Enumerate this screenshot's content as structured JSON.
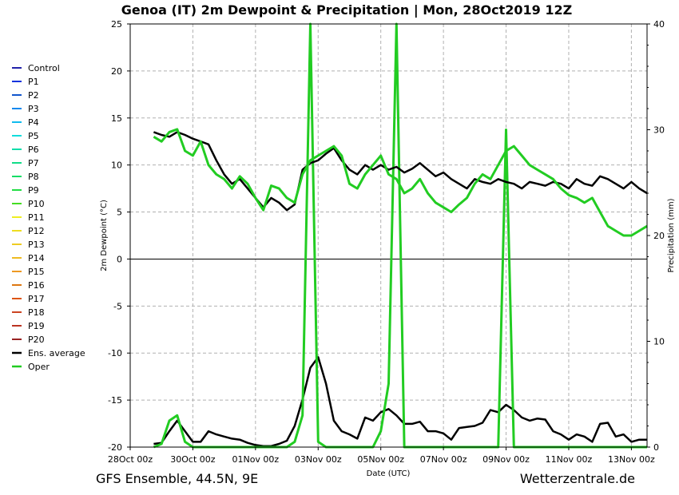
{
  "chart_data": {
    "type": "line",
    "title": "Genoa  (IT)  2m Dewpoint & Precipitation | Mon, 28Oct2019 12Z",
    "ylabel": "2m Dewpoint (°C)",
    "y2label": "Precipitation (mm)",
    "xlabel": "Date (UTC)",
    "ylim": [
      -20,
      25
    ],
    "y2lim": [
      0,
      40
    ],
    "xlim": [
      0,
      16.5
    ],
    "x_units": "days since 28Oct 00z",
    "yticks": [
      "25",
      "20",
      "15",
      "10",
      "5",
      "0",
      "-5",
      "-10",
      "-15",
      "-20"
    ],
    "y2ticks": [
      "40",
      "30",
      "20",
      "10",
      "0"
    ],
    "xticks": [
      "28Oct 00z",
      "30Oct 00z",
      "01Nov 00z",
      "03Nov 00z",
      "05Nov 00z",
      "07Nov 00z",
      "09Nov 00z",
      "11Nov 00z",
      "13Nov 00z"
    ],
    "grid": true,
    "legend_position": "left",
    "legend": [
      {
        "name": "Control",
        "color": "#2222aa"
      },
      {
        "name": "P1",
        "color": "#1133dd"
      },
      {
        "name": "P2",
        "color": "#1155cc"
      },
      {
        "name": "P3",
        "color": "#1188ee"
      },
      {
        "name": "P4",
        "color": "#11bbee"
      },
      {
        "name": "P5",
        "color": "#11dddd"
      },
      {
        "name": "P6",
        "color": "#11ddaa"
      },
      {
        "name": "P7",
        "color": "#11dd88"
      },
      {
        "name": "P8",
        "color": "#11dd66"
      },
      {
        "name": "P9",
        "color": "#22dd44"
      },
      {
        "name": "P10",
        "color": "#44dd22"
      },
      {
        "name": "P11",
        "color": "#eeee22"
      },
      {
        "name": "P12",
        "color": "#eedd22"
      },
      {
        "name": "P13",
        "color": "#eecc22"
      },
      {
        "name": "P14",
        "color": "#eebb22"
      },
      {
        "name": "P15",
        "color": "#ee9922"
      },
      {
        "name": "P16",
        "color": "#dd7711"
      },
      {
        "name": "P17",
        "color": "#dd5511"
      },
      {
        "name": "P18",
        "color": "#cc4422"
      },
      {
        "name": "P19",
        "color": "#bb3322"
      },
      {
        "name": "P20",
        "color": "#992222"
      },
      {
        "name": "Ens. average",
        "color": "#000000"
      },
      {
        "name": "Oper",
        "color": "#22cc22"
      }
    ],
    "series": [
      {
        "name": "Ens. average",
        "axis": "dewpoint",
        "x": [
          0.75,
          1.0,
          1.25,
          1.5,
          1.75,
          2.0,
          2.25,
          2.5,
          2.75,
          3.0,
          3.25,
          3.5,
          3.75,
          4.0,
          4.25,
          4.5,
          4.75,
          5.0,
          5.25,
          5.5,
          5.75,
          6.0,
          6.25,
          6.5,
          6.75,
          7.0,
          7.25,
          7.5,
          7.75,
          8.0,
          8.25,
          8.5,
          8.75,
          9.0,
          9.25,
          9.5,
          9.75,
          10.0,
          10.25,
          10.5,
          10.75,
          11.0,
          11.25,
          11.5,
          11.75,
          12.0,
          12.25,
          12.5,
          12.75,
          13.0,
          13.25,
          13.5,
          13.75,
          14.0,
          14.25,
          14.5,
          14.75,
          15.0,
          15.25,
          15.5,
          15.75,
          16.0,
          16.25,
          16.5
        ],
        "y": [
          13.5,
          13.2,
          13.0,
          13.5,
          13.2,
          12.8,
          12.5,
          12.2,
          10.5,
          9.0,
          8.0,
          8.5,
          7.5,
          6.5,
          5.5,
          6.5,
          6.0,
          5.2,
          5.8,
          9.5,
          10.2,
          10.5,
          11.2,
          11.8,
          10.5,
          9.5,
          9.0,
          10.0,
          9.5,
          10.0,
          9.5,
          9.8,
          9.2,
          9.6,
          10.2,
          9.5,
          8.8,
          9.2,
          8.5,
          8.0,
          7.5,
          8.5,
          8.2,
          8.0,
          8.5,
          8.2,
          8.0,
          7.5,
          8.2,
          8.0,
          7.8,
          8.2,
          8.0,
          7.5,
          8.5,
          8.0,
          7.8,
          8.8,
          8.5,
          8.0,
          7.5,
          8.2,
          7.5,
          7.0
        ]
      },
      {
        "name": "Oper",
        "axis": "dewpoint",
        "x": [
          0.75,
          1.0,
          1.25,
          1.5,
          1.75,
          2.0,
          2.25,
          2.5,
          2.75,
          3.0,
          3.25,
          3.5,
          3.75,
          4.0,
          4.25,
          4.5,
          4.75,
          5.0,
          5.25,
          5.5,
          5.75,
          6.0,
          6.25,
          6.5,
          6.75,
          7.0,
          7.25,
          7.5,
          7.75,
          8.0,
          8.25,
          8.5,
          8.75,
          9.0,
          9.25,
          9.5,
          9.75,
          10.0,
          10.25,
          10.5,
          10.75,
          11.0,
          11.25,
          11.5,
          11.75,
          12.0,
          12.25,
          12.5,
          12.75,
          13.0,
          13.25,
          13.5,
          13.75,
          14.0,
          14.25,
          14.5,
          14.75,
          15.0,
          15.25,
          15.5,
          15.75,
          16.0,
          16.25,
          16.5
        ],
        "y": [
          13.0,
          12.5,
          13.5,
          13.8,
          11.5,
          11.0,
          12.5,
          10.0,
          9.0,
          8.5,
          7.5,
          8.8,
          8.0,
          6.5,
          5.2,
          7.8,
          7.5,
          6.5,
          6.0,
          9.0,
          10.5,
          11.0,
          11.5,
          12.0,
          11.0,
          8.0,
          7.5,
          9.0,
          10.0,
          11.0,
          9.0,
          8.5,
          7.0,
          7.5,
          8.5,
          7.0,
          6.0,
          5.5,
          5.0,
          5.8,
          6.5,
          8.0,
          9.0,
          8.5,
          10.0,
          11.5,
          12.0,
          11.0,
          10.0,
          9.5,
          9.0,
          8.5,
          7.5,
          6.8,
          6.5,
          6.0,
          6.5,
          5.0,
          3.5,
          3.0,
          2.5,
          2.5,
          3.0,
          3.5
        ]
      },
      {
        "name": "Ens. average",
        "axis": "precipitation",
        "x": [
          0.75,
          1.0,
          1.25,
          1.5,
          1.75,
          2.0,
          2.25,
          2.5,
          2.75,
          3.0,
          3.25,
          3.5,
          3.75,
          4.0,
          4.25,
          4.5,
          4.75,
          5.0,
          5.25,
          5.5,
          5.75,
          6.0,
          6.25,
          6.5,
          6.75,
          7.0,
          7.25,
          7.5,
          7.75,
          8.0,
          8.25,
          8.5,
          8.75,
          9.0,
          9.25,
          9.5,
          9.75,
          10.0,
          10.25,
          10.5,
          10.75,
          11.0,
          11.25,
          11.5,
          11.75,
          12.0,
          12.25,
          12.5,
          12.75,
          13.0,
          13.25,
          13.5,
          13.75,
          14.0,
          14.25,
          14.5,
          14.75,
          15.0,
          15.25,
          15.5,
          15.75,
          16.0,
          16.25,
          16.5
        ],
        "y": [
          0.3,
          0.4,
          1.5,
          2.5,
          1.5,
          0.5,
          0.5,
          1.5,
          1.2,
          1.0,
          0.8,
          0.7,
          0.4,
          0.2,
          0.1,
          0.1,
          0.3,
          0.6,
          2.0,
          4.5,
          7.5,
          8.5,
          6.0,
          2.5,
          1.5,
          1.2,
          0.8,
          2.8,
          2.5,
          3.3,
          3.6,
          3.0,
          2.2,
          2.2,
          2.4,
          1.5,
          1.5,
          1.3,
          0.7,
          1.8,
          1.9,
          2.0,
          2.3,
          3.5,
          3.3,
          4.0,
          3.5,
          2.8,
          2.5,
          2.7,
          2.6,
          1.5,
          1.2,
          0.7,
          1.2,
          1.0,
          0.5,
          2.2,
          2.3,
          1.0,
          1.2,
          0.5,
          0.7,
          0.7
        ]
      },
      {
        "name": "Oper",
        "axis": "precipitation",
        "x": [
          0.75,
          1.0,
          1.25,
          1.5,
          1.75,
          2.0,
          2.25,
          2.5,
          2.75,
          3.0,
          3.25,
          3.5,
          3.75,
          4.0,
          4.25,
          4.5,
          4.75,
          5.0,
          5.25,
          5.5,
          5.75,
          6.0,
          6.25,
          6.5,
          6.75,
          7.0,
          7.25,
          7.5,
          7.75,
          8.0,
          8.25,
          8.5,
          8.75,
          9.0,
          9.25,
          9.5,
          9.75,
          10.0,
          10.25,
          10.5,
          10.75,
          11.0,
          11.25,
          11.5,
          11.75,
          12.0,
          12.25,
          12.5,
          12.75,
          13.0,
          13.25,
          13.5,
          13.75,
          14.0,
          14.25,
          14.5,
          14.75,
          15.0,
          15.25,
          15.5,
          15.75,
          16.0,
          16.25,
          16.5
        ],
        "y": [
          0,
          0.3,
          2.5,
          3.0,
          0.5,
          0,
          0,
          0,
          0,
          0,
          0,
          0,
          0,
          0,
          0,
          0,
          0,
          0,
          0.5,
          3.0,
          40,
          0.5,
          0,
          0,
          0,
          0,
          0,
          0,
          0,
          1.5,
          6.0,
          40,
          0,
          0,
          0,
          0,
          0,
          0,
          0,
          0,
          0,
          0,
          0,
          0,
          0,
          30,
          0,
          0,
          0,
          0,
          0,
          0,
          0,
          0,
          0,
          0,
          0,
          0,
          0,
          0,
          0,
          0,
          0,
          0
        ]
      }
    ]
  },
  "footer": {
    "left": "GFS Ensemble, 44.5N, 9E",
    "right": "Wetterzentrale.de"
  }
}
